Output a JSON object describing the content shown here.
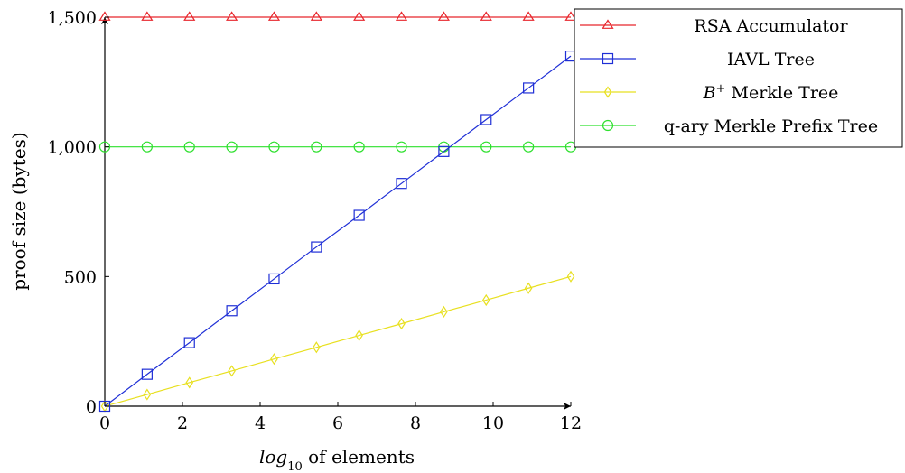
{
  "chart_data": {
    "type": "line",
    "xlabel_prefix": "log",
    "xlabel_sub": "10",
    "xlabel_suffix": " of elements",
    "ylabel": "proof size (bytes)",
    "xlim": [
      0,
      12
    ],
    "ylim": [
      0,
      1500
    ],
    "xticks": [
      0,
      2,
      4,
      6,
      8,
      10,
      12
    ],
    "yticks": [
      0,
      500,
      1000,
      1500
    ],
    "ytick_labels": [
      "0",
      "500",
      "1,000",
      "1,500"
    ],
    "grid": false,
    "legend_position": "top-right (outside plot)",
    "x": [
      0,
      1.09,
      2.18,
      3.27,
      4.36,
      5.45,
      6.55,
      7.64,
      8.73,
      9.82,
      10.91,
      12
    ],
    "series": [
      {
        "name": "RSA Accumulator",
        "legend_main": "RSA Accumulator",
        "legend_sup": "",
        "legend_rest": "",
        "color": "#e8262c",
        "marker": "triangle",
        "values": [
          1500,
          1500,
          1500,
          1500,
          1500,
          1500,
          1500,
          1500,
          1500,
          1500,
          1500,
          1500
        ]
      },
      {
        "name": "IAVL Tree",
        "legend_main": "IAVL Tree",
        "legend_sup": "",
        "legend_rest": "",
        "color": "#1f2fd6",
        "marker": "square",
        "values": [
          0,
          123,
          245,
          368,
          491,
          614,
          736,
          859,
          982,
          1105,
          1227,
          1350
        ]
      },
      {
        "name": "B+ Merkle Tree",
        "legend_main": "B",
        "legend_sup": "+",
        "legend_rest": " Merkle Tree",
        "color": "#e8e020",
        "marker": "diamond",
        "values": [
          0,
          45,
          91,
          136,
          182,
          227,
          273,
          318,
          364,
          409,
          455,
          500
        ]
      },
      {
        "name": "q-ary Merkle Prefix Tree",
        "legend_main": "q-ary Merkle Prefix Tree",
        "legend_sup": "",
        "legend_rest": "",
        "color": "#2ee02e",
        "marker": "circle",
        "values": [
          1000,
          1000,
          1000,
          1000,
          1000,
          1000,
          1000,
          1000,
          1000,
          1000,
          1000,
          1000
        ]
      }
    ]
  }
}
